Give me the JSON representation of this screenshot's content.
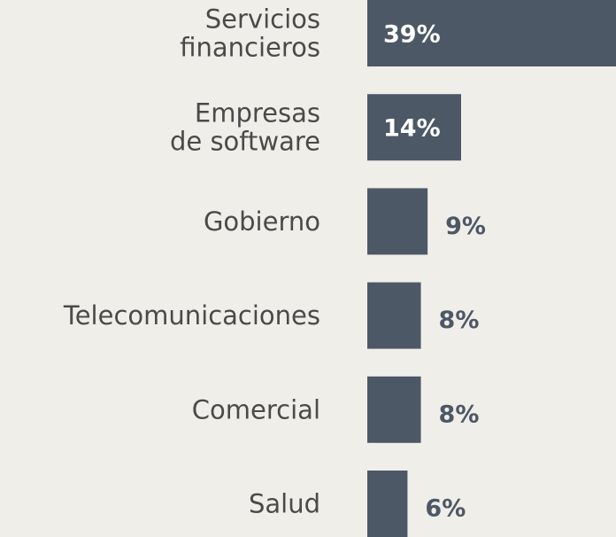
{
  "chart_data": {
    "type": "bar",
    "orientation": "horizontal",
    "categories": [
      "Servicios\nfinancieros",
      "Empresas\nde software",
      "Gobierno",
      "Telecomunicaciones",
      "Comercial",
      "Salud"
    ],
    "values": [
      39,
      14,
      9,
      8,
      8,
      6
    ],
    "value_labels": [
      "39%",
      "14%",
      "9%",
      "8%",
      "8%",
      "6%"
    ],
    "color": "#4d5866"
  }
}
